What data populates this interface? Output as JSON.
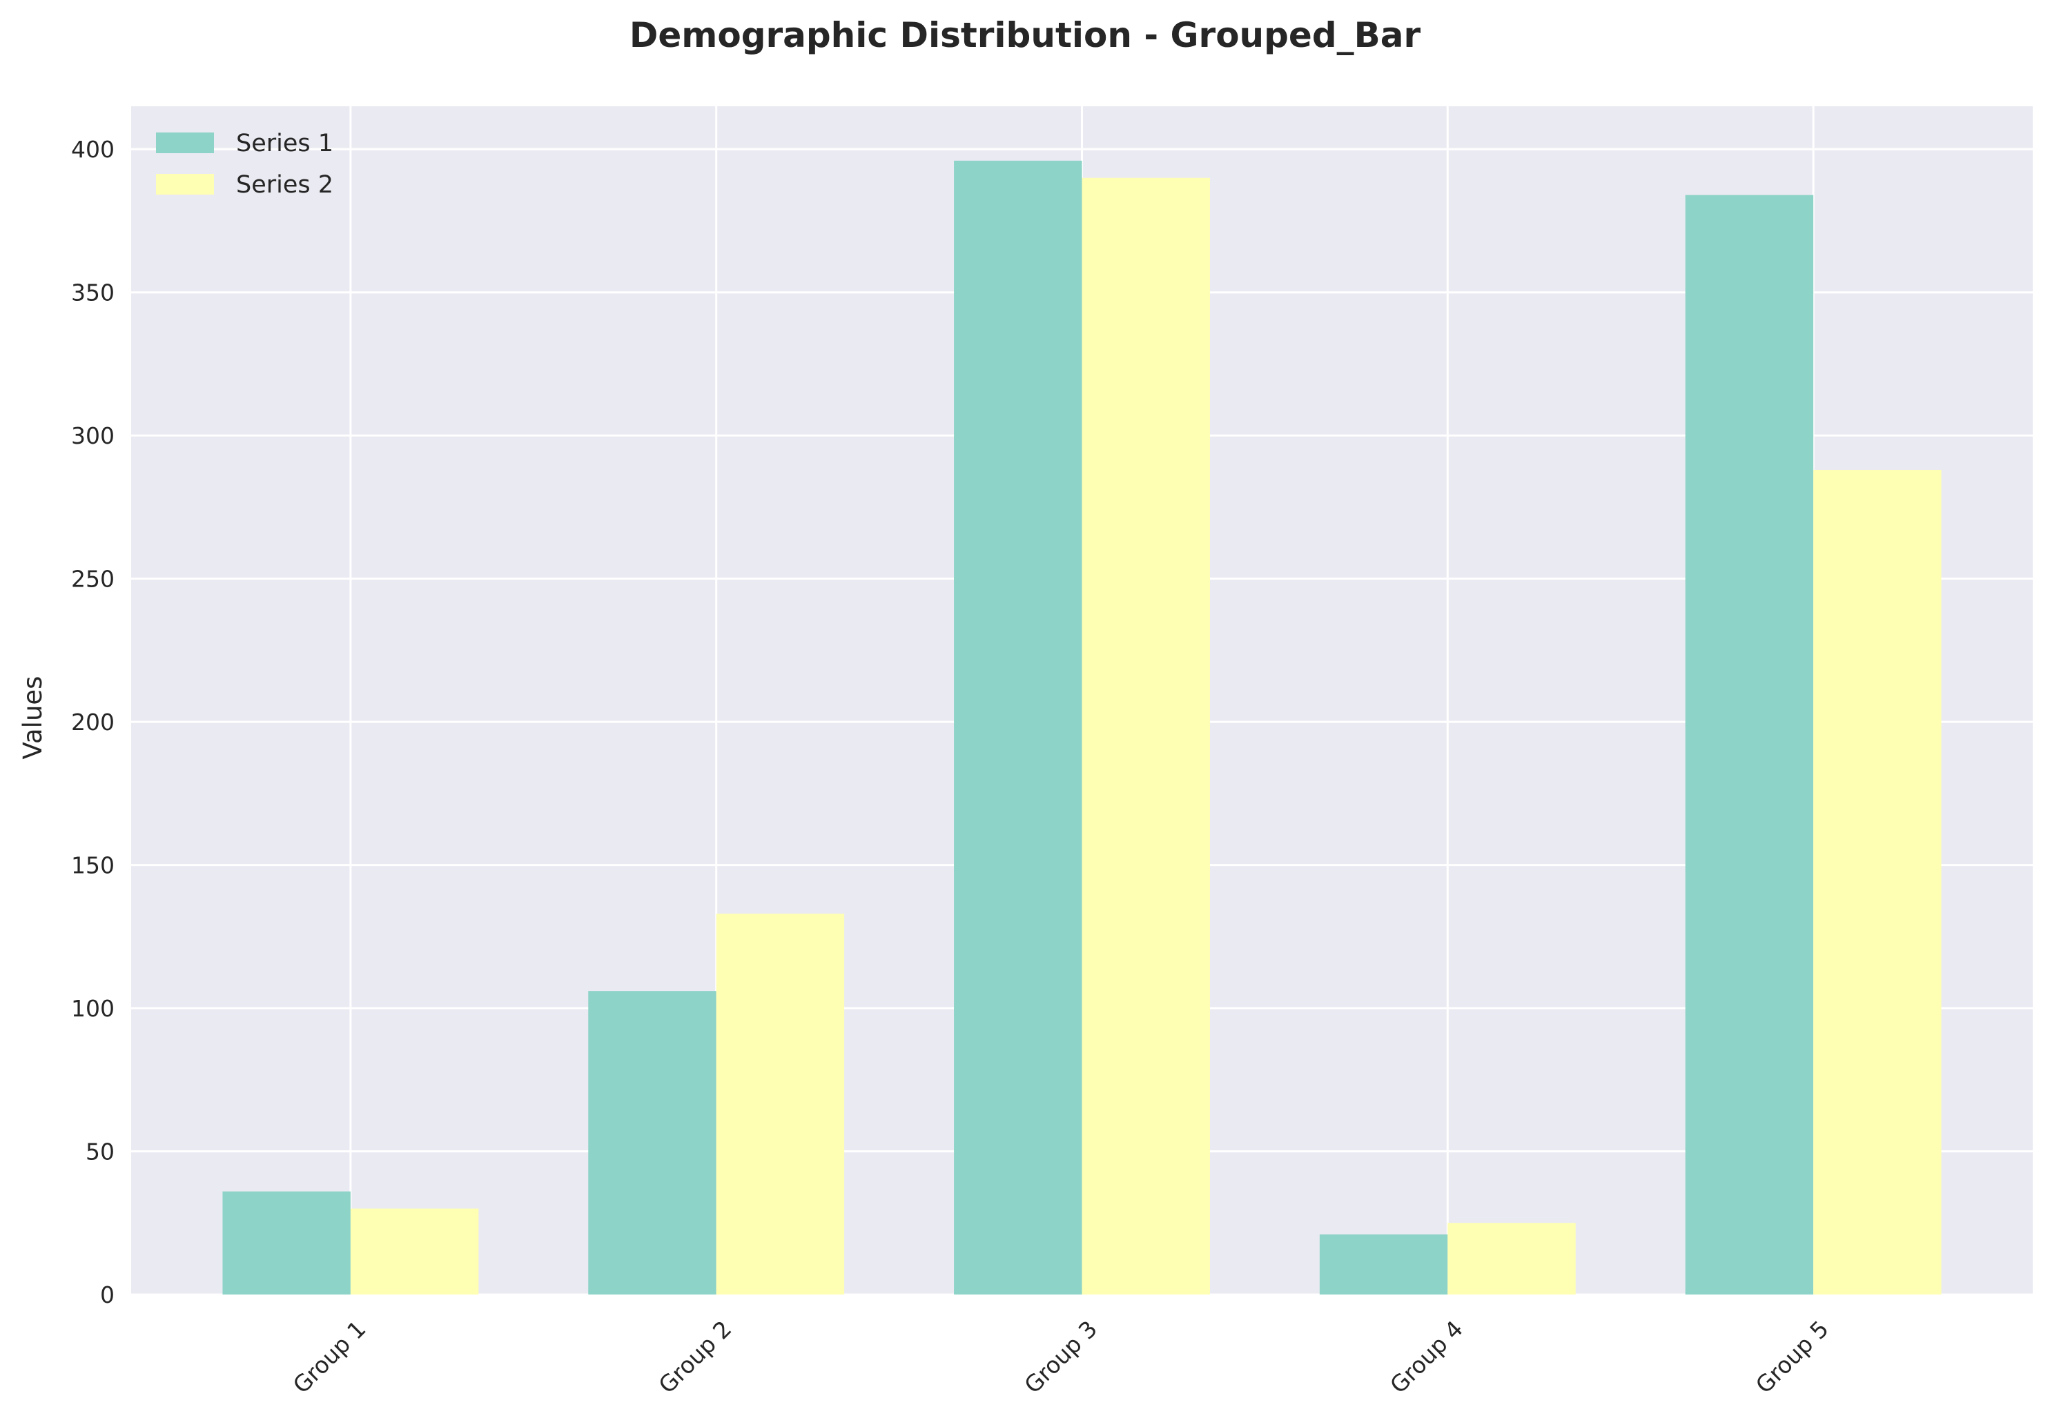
{
  "chart_data": {
    "type": "bar",
    "title": "Demographic Distribution - Grouped_Bar",
    "xlabel": "",
    "ylabel": "Values",
    "categories": [
      "Group 1",
      "Group 2",
      "Group 3",
      "Group 4",
      "Group 5"
    ],
    "series": [
      {
        "name": "Series 1",
        "color": "#8dd3c7",
        "values": [
          36,
          106,
          396,
          21,
          384
        ]
      },
      {
        "name": "Series 2",
        "color": "#ffffb3",
        "values": [
          30,
          133,
          390,
          25,
          288
        ]
      }
    ],
    "ylim": [
      0,
      415
    ],
    "yticks": [
      0,
      50,
      100,
      150,
      200,
      250,
      300,
      350,
      400
    ],
    "grid": true,
    "legend_position": "top-left",
    "plot_background": "#eaeaf2"
  }
}
